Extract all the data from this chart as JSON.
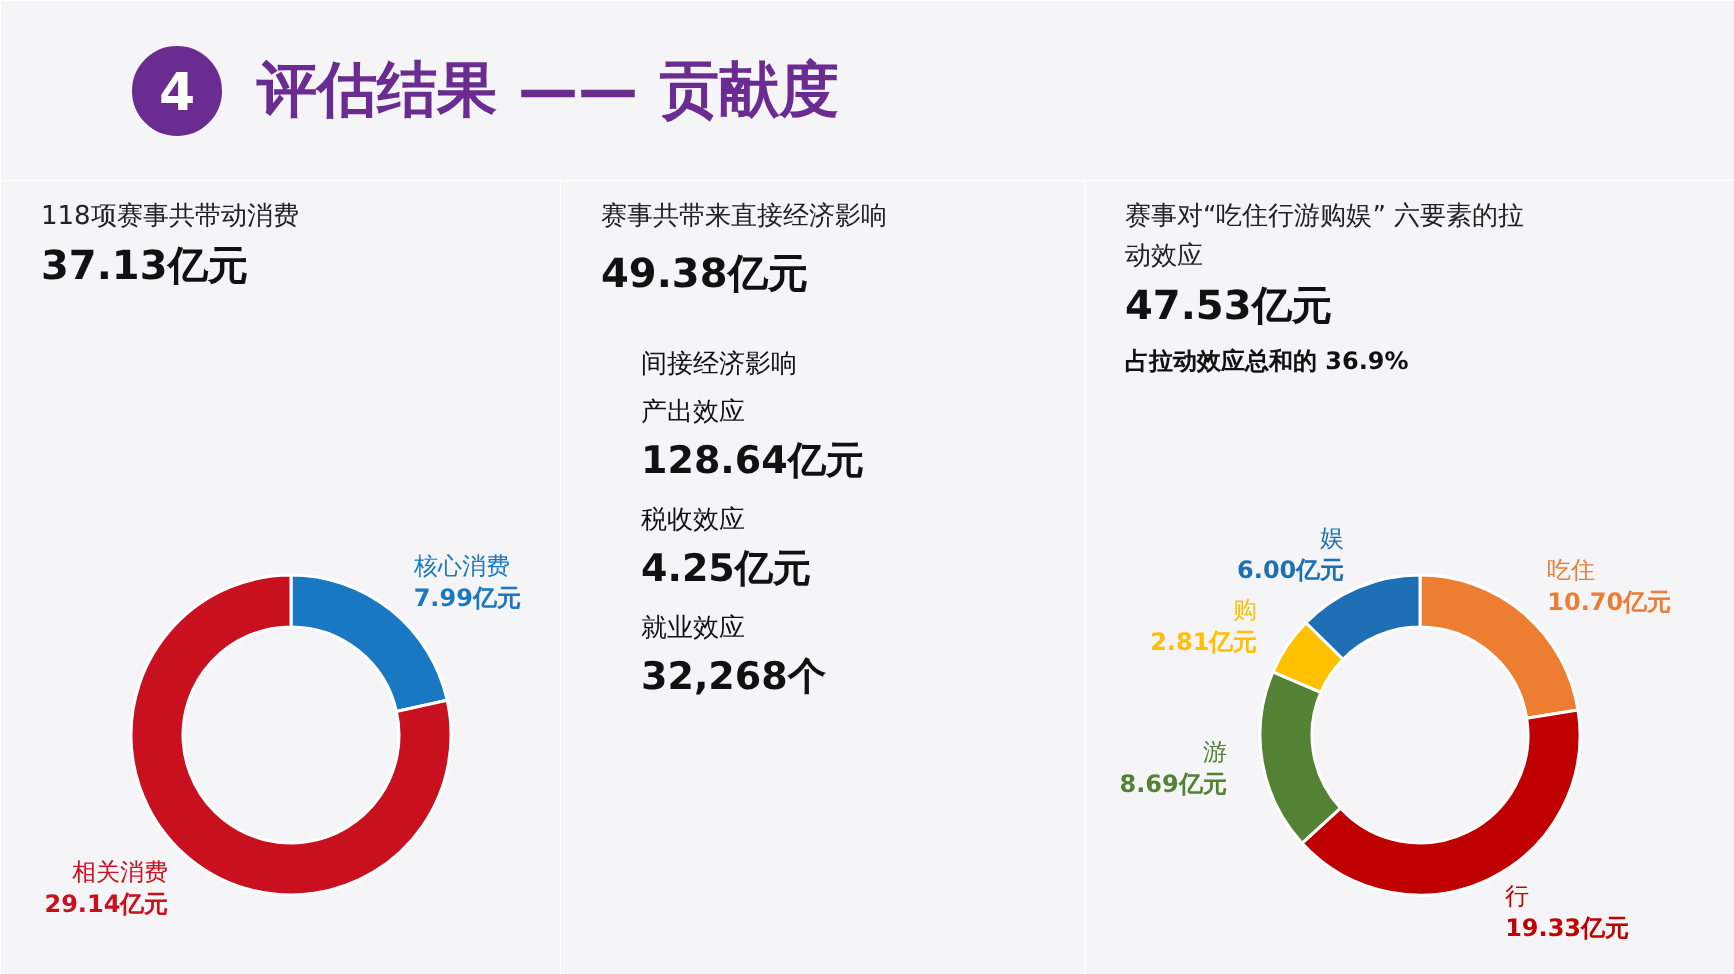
{
  "chart_data": [
    {
      "type": "other",
      "title": "评估结果 —— 贡献度",
      "annotations": [
        "4"
      ]
    },
    {
      "type": "donut",
      "title": "118项赛事共带动消费",
      "subtitle": "37.13亿元",
      "categories": [
        "核心消费",
        "相关消费"
      ],
      "values": [
        7.99,
        29.14
      ],
      "colors": [
        "#1a78c2",
        "#c8101e"
      ],
      "value_labels": [
        "7.99亿元",
        "29.14亿元"
      ]
    },
    {
      "type": "other",
      "title": "赛事共带来直接经济影响",
      "subtitle": "49.38亿元",
      "annotations": [
        "间接经济影响",
        "产出效应",
        "128.64亿元",
        "税收效应",
        "4.25亿元",
        "就业效应",
        "32,268个"
      ]
    },
    {
      "type": "donut",
      "title": "赛事对“吃住行游购娱” 六要素的拉动效应",
      "subtitle": "47.53亿元",
      "annotations": [
        "占拉动效应总和的 36.9%"
      ],
      "categories": [
        "吃住",
        "行",
        "游",
        "购",
        "娱"
      ],
      "values": [
        10.7,
        19.33,
        8.69,
        2.81,
        6.0
      ],
      "colors": [
        "#ed7d31",
        "#c00000",
        "#548235",
        "#ffc000",
        "#1f6fb5"
      ],
      "value_labels": [
        "10.70亿元",
        "19.33亿元",
        "8.69亿元",
        "2.81亿元",
        "6.00亿元"
      ]
    }
  ]
}
